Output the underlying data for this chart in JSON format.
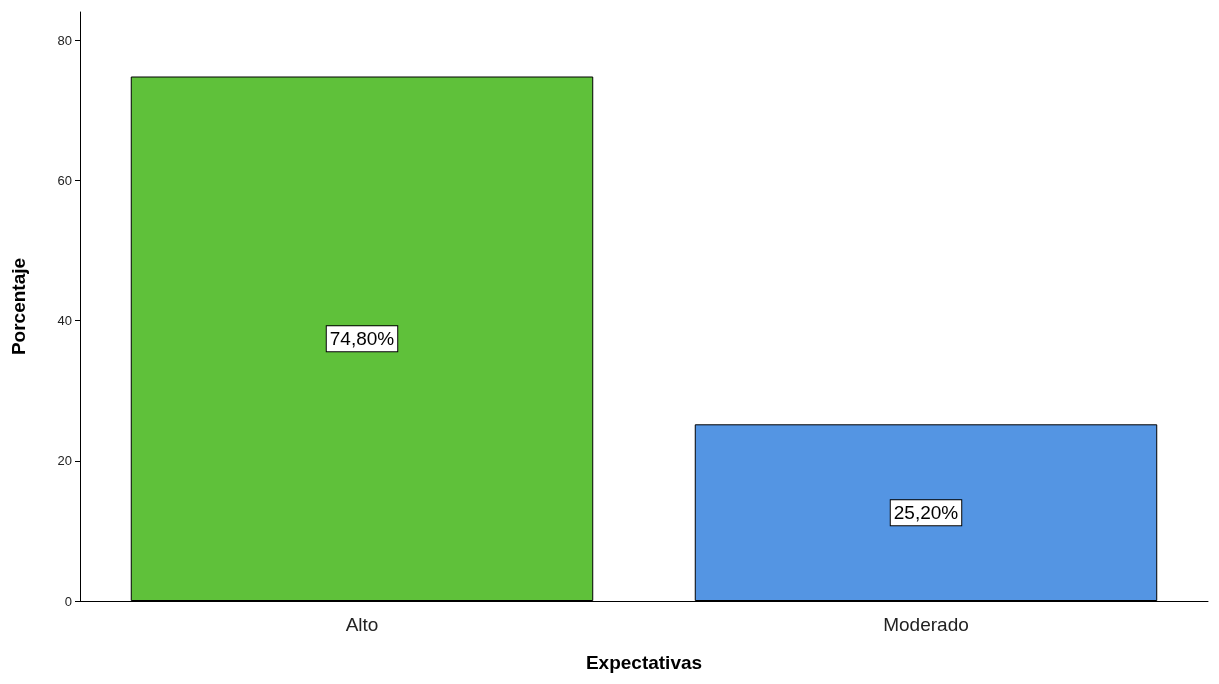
{
  "chart_data": {
    "type": "bar",
    "xlabel": "Expectativas",
    "ylabel": "Porcentaje",
    "categories": [
      "Alto",
      "Moderado"
    ],
    "values": [
      74.8,
      25.2
    ],
    "colors": [
      "#5fc13a",
      "#5495e3"
    ],
    "value_labels": [
      "74,80%",
      "25,20%"
    ],
    "ylim": [
      0,
      84
    ],
    "yticks": [
      0,
      20,
      40,
      60,
      80
    ],
    "grid": false
  }
}
